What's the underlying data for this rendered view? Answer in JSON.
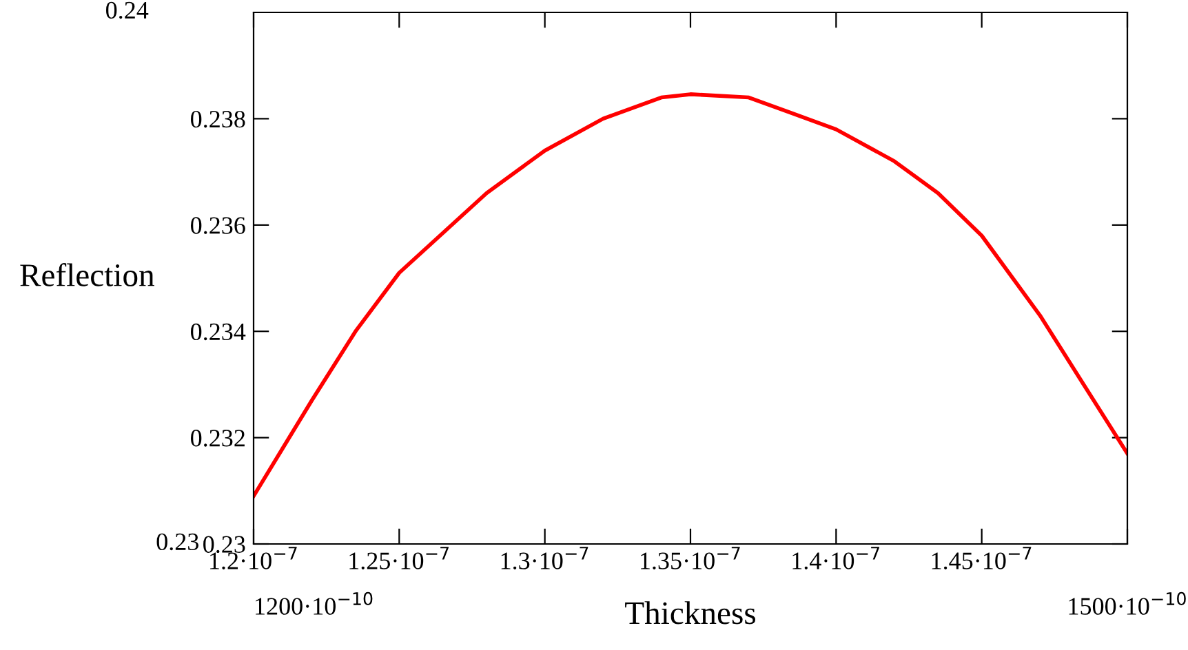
{
  "chart_data": {
    "type": "line",
    "xlabel": "Thickness",
    "ylabel": "Reflection",
    "x": [
      1.2e-07,
      1.21e-07,
      1.22e-07,
      1.235e-07,
      1.25e-07,
      1.28e-07,
      1.3e-07,
      1.32e-07,
      1.34e-07,
      1.35e-07,
      1.37e-07,
      1.385e-07,
      1.4e-07,
      1.42e-07,
      1.435e-07,
      1.45e-07,
      1.47e-07,
      1.485e-07,
      1.5e-07
    ],
    "series": [
      {
        "color": "#ff0000",
        "values": [
          0.2309,
          0.2318,
          0.2327,
          0.234,
          0.2351,
          0.2366,
          0.2374,
          0.238,
          0.2384,
          0.23846,
          0.2384,
          0.2381,
          0.2378,
          0.2372,
          0.2366,
          0.2358,
          0.2343,
          0.233,
          0.2317
        ]
      }
    ],
    "xlim": [
      1.2e-07,
      1.5e-07
    ],
    "ylim": [
      0.23,
      0.24
    ],
    "xticks": [
      {
        "value": 1.2e-07,
        "label": "1.2·10$^{−7}$"
      },
      {
        "value": 1.25e-07,
        "label": "1.25·10$^{−7}$"
      },
      {
        "value": 1.3e-07,
        "label": "1.3·10$^{−7}$"
      },
      {
        "value": 1.35e-07,
        "label": "1.35·10$^{−7}$"
      },
      {
        "value": 1.4e-07,
        "label": "1.4·10$^{−7}$"
      },
      {
        "value": 1.45e-07,
        "label": "1.45·10$^{−7}$"
      },
      {
        "value": 1.5e-07,
        "label": null
      }
    ],
    "yticks": [
      {
        "value": 0.23,
        "label": "0.23"
      },
      {
        "value": 0.232,
        "label": "0.232"
      },
      {
        "value": 0.234,
        "label": "0.234"
      },
      {
        "value": 0.236,
        "label": "0.236"
      },
      {
        "value": 0.238,
        "label": "0.238"
      }
    ],
    "annotations": [
      "0.24",
      "0.23",
      "1200·10$^{−10}$",
      "1500·10$^{−10}$"
    ],
    "grid": false,
    "legend": false,
    "marker": "none",
    "line_style": "solid"
  }
}
